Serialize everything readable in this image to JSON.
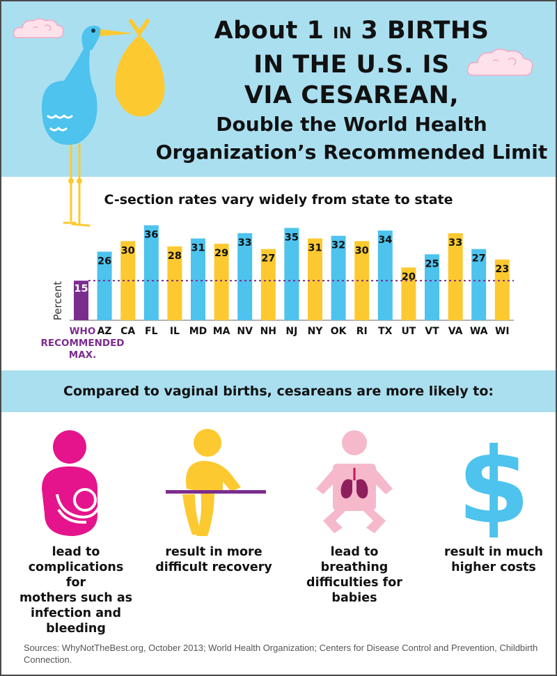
{
  "title": {
    "line1_prefix": "About 1 ",
    "line1_in": "IN",
    "line1_suffix": " 3 BIRTHS",
    "line2": "IN THE U.S. IS",
    "line3": "VIA CESAREAN,",
    "sub1": "Double the World Health",
    "sub2": "Organization’s Recommended Limit"
  },
  "chart_data": {
    "type": "bar",
    "title": "C-section rates vary widely from state to state",
    "ylabel": "Percent",
    "xlabel": "",
    "ylim": [
      0,
      38
    ],
    "reference_line": {
      "value": 15,
      "label": "WHO RECOMMENDED MAX.",
      "color": "#7b2d8e"
    },
    "categories": [
      "WHO",
      "AZ",
      "CA",
      "FL",
      "IL",
      "MD",
      "MA",
      "NV",
      "NH",
      "NJ",
      "NY",
      "OK",
      "RI",
      "TX",
      "UT",
      "VT",
      "VA",
      "WA",
      "WI"
    ],
    "values": [
      15,
      26,
      30,
      36,
      28,
      31,
      29,
      33,
      27,
      35,
      31,
      32,
      30,
      34,
      20,
      25,
      33,
      27,
      23
    ],
    "colors": [
      "#7b2d8e",
      "#4dc3ee",
      "#fdc931",
      "#4dc3ee",
      "#fdc931",
      "#4dc3ee",
      "#fdc931",
      "#4dc3ee",
      "#fdc931",
      "#4dc3ee",
      "#fdc931",
      "#4dc3ee",
      "#fdc931",
      "#4dc3ee",
      "#fdc931",
      "#4dc3ee",
      "#fdc931",
      "#4dc3ee",
      "#fdc931"
    ],
    "who_label_lines": [
      "WHO",
      "RECOMMENDED",
      "MAX."
    ]
  },
  "comparison": {
    "heading": "Compared to vaginal births, cesareans are more likely to:",
    "items": [
      {
        "icon": "mother-baby-icon",
        "color": "#e5148c",
        "lines": [
          "lead to",
          "complications for",
          "mothers such as",
          "infection and",
          "bleeding"
        ]
      },
      {
        "icon": "recovery-person-icon",
        "color": "#fdc931",
        "lines": [
          "result in more",
          "difficult recovery"
        ]
      },
      {
        "icon": "baby-lungs-icon",
        "color": "#f5b9cb",
        "lines": [
          "lead to breathing",
          "difficulties for",
          "babies"
        ]
      },
      {
        "icon": "dollar-icon",
        "color": "#4dc3ee",
        "lines": [
          "result in much",
          "higher costs"
        ]
      }
    ]
  },
  "sources": "Sources: WhyNotTheBest.org, October 2013; World Health Organization; Centers for Disease Control and Prevention, Childbirth Connection."
}
